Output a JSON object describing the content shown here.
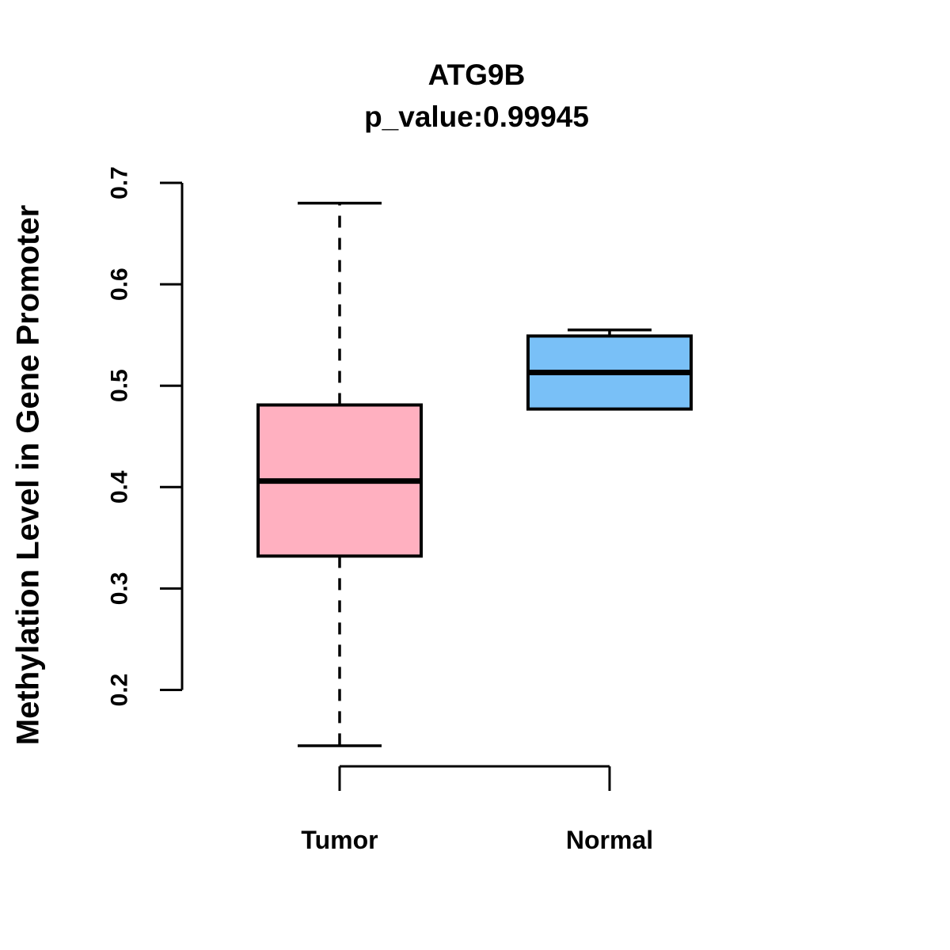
{
  "chart_data": {
    "type": "boxplot",
    "title": "ATG9B",
    "subtitle": "p_value:0.99945",
    "xlabel": "",
    "ylabel": "Methylation Level in Gene Promoter",
    "categories": [
      "Tumor",
      "Normal"
    ],
    "yticks": [
      "0.2",
      "0.3",
      "0.4",
      "0.5",
      "0.6",
      "0.7"
    ],
    "ylim": [
      0.2,
      0.7
    ],
    "grid": false,
    "legend": "none",
    "orientation": "vertical",
    "series": [
      {
        "name": "Tumor",
        "fill_color": "#FFB0C0",
        "whisker_low": 0.145,
        "q1": 0.332,
        "median": 0.406,
        "q3": 0.481,
        "whisker_high": 0.68
      },
      {
        "name": "Normal",
        "fill_color": "#79C0F7",
        "whisker_low": 0.477,
        "q1": 0.477,
        "median": 0.513,
        "q3": 0.549,
        "whisker_high": 0.555
      }
    ],
    "colors": {
      "box_border": "#000000",
      "median_line": "#000000",
      "whisker": "#000000",
      "axis": "#000000",
      "text": "#000000",
      "background": "#ffffff"
    }
  }
}
